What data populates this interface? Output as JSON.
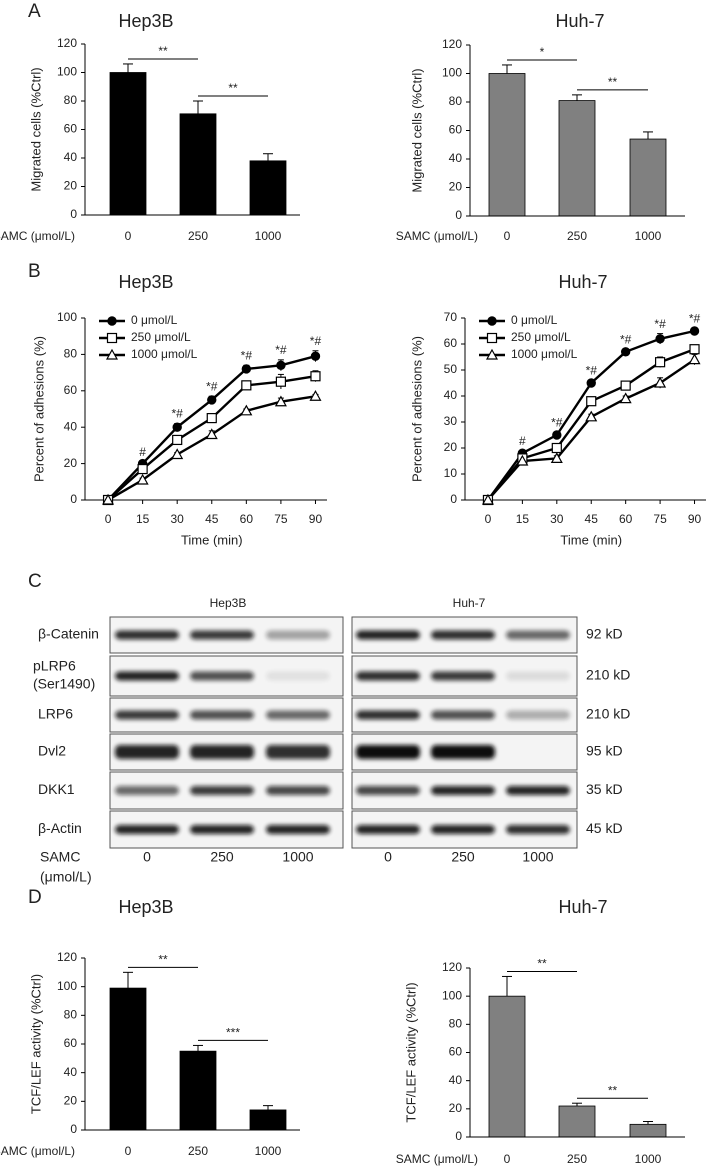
{
  "panels": [
    "A",
    "B",
    "C",
    "D"
  ],
  "chart_data": [
    {
      "type": "bar",
      "title": "Hep3B",
      "ylabel": "Migrated cells (%Ctrl)",
      "xlabel": "SAMC (μmol/L)",
      "categories": [
        "0",
        "250",
        "1000"
      ],
      "values": [
        100,
        71,
        38
      ],
      "errors": [
        6,
        9,
        5
      ],
      "color": "#000000",
      "ylim": [
        0,
        120
      ],
      "yticks": [
        0,
        20,
        40,
        60,
        80,
        100,
        120
      ],
      "annotations": [
        {
          "text": "**",
          "from": 0,
          "to": 1
        },
        {
          "text": "**",
          "from": 1,
          "to": 2
        }
      ]
    },
    {
      "type": "bar",
      "title": "Huh-7",
      "ylabel": "Migrated cells (%Ctrl)",
      "xlabel": "SAMC (μmol/L)",
      "categories": [
        "0",
        "250",
        "1000"
      ],
      "values": [
        100,
        81,
        54
      ],
      "errors": [
        6,
        4,
        5
      ],
      "color": "#808080",
      "ylim": [
        0,
        120
      ],
      "yticks": [
        0,
        20,
        40,
        60,
        80,
        100,
        120
      ],
      "annotations": [
        {
          "text": "*",
          "from": 0,
          "to": 1
        },
        {
          "text": "**",
          "from": 1,
          "to": 2
        }
      ]
    },
    {
      "type": "line",
      "title": "Hep3B",
      "ylabel": "Percent of adhesions (%)",
      "xlabel": "Time (min)",
      "x": [
        0,
        15,
        30,
        45,
        60,
        75,
        90
      ],
      "xlim": [
        -10,
        95
      ],
      "xticks": [
        0,
        15,
        30,
        45,
        60,
        75,
        90
      ],
      "ylim": [
        0,
        100
      ],
      "yticks": [
        0,
        20,
        40,
        60,
        80,
        100
      ],
      "legend": "upper-left",
      "series": [
        {
          "name": "0 μmol/L",
          "color": "#000000",
          "marker": "circle",
          "values": [
            0,
            20,
            40,
            55,
            72,
            74,
            79
          ],
          "errors": [
            0,
            1,
            2,
            2,
            2,
            3,
            3
          ]
        },
        {
          "name": "250 μmol/L",
          "color": "#000000",
          "marker": "square",
          "values": [
            0,
            17,
            33,
            45,
            63,
            65,
            68
          ],
          "errors": [
            0,
            1,
            2,
            2,
            2,
            4,
            3
          ]
        },
        {
          "name": "1000 μmol/L",
          "color": "#000000",
          "marker": "triangle",
          "values": [
            0,
            11,
            25,
            36,
            49,
            54,
            57
          ],
          "errors": [
            0,
            1,
            1,
            2,
            1,
            2,
            1
          ]
        }
      ],
      "point_labels": [
        null,
        "#",
        "*#",
        "*#",
        "*#",
        "*#",
        "*#"
      ]
    },
    {
      "type": "line",
      "title": "Huh-7",
      "ylabel": "Percent of adhesions (%)",
      "xlabel": "Time (min)",
      "x": [
        0,
        15,
        30,
        45,
        60,
        75,
        90
      ],
      "xlim": [
        -10,
        95
      ],
      "xticks": [
        0,
        15,
        30,
        45,
        60,
        75,
        90
      ],
      "ylim": [
        0,
        70
      ],
      "yticks": [
        0,
        10,
        20,
        30,
        40,
        50,
        60,
        70
      ],
      "legend": "upper-left",
      "series": [
        {
          "name": "0 μmol/L",
          "color": "#000000",
          "marker": "circle",
          "values": [
            0,
            18,
            25,
            45,
            57,
            62,
            65
          ],
          "errors": [
            0,
            1,
            1,
            1,
            1,
            2,
            1
          ]
        },
        {
          "name": "250 μmol/L",
          "color": "#000000",
          "marker": "square",
          "values": [
            0,
            16,
            20,
            38,
            44,
            53,
            58
          ],
          "errors": [
            0,
            1,
            1,
            1,
            1,
            2,
            1
          ]
        },
        {
          "name": "1000 μmol/L",
          "color": "#000000",
          "marker": "triangle",
          "values": [
            0,
            15,
            16,
            32,
            39,
            45,
            54
          ],
          "errors": [
            0,
            1,
            1,
            1,
            1,
            2,
            2
          ]
        }
      ],
      "point_labels": [
        null,
        "#",
        "*#",
        "*#",
        "*#",
        "*#",
        "*#"
      ]
    },
    {
      "type": "bar",
      "title": "Hep3B",
      "ylabel": "TCF/LEF activity (%Ctrl)",
      "xlabel": "SAMC (μmol/L)",
      "categories": [
        "0",
        "250",
        "1000"
      ],
      "values": [
        99,
        55,
        14
      ],
      "errors": [
        11,
        4,
        3
      ],
      "color": "#000000",
      "ylim": [
        0,
        120
      ],
      "yticks": [
        0,
        20,
        40,
        60,
        80,
        100,
        120
      ],
      "annotations": [
        {
          "text": "**",
          "from": 0,
          "to": 1
        },
        {
          "text": "***",
          "from": 1,
          "to": 2
        }
      ]
    },
    {
      "type": "bar",
      "title": "Huh-7",
      "ylabel": "TCF/LEF activity (%Ctrl)",
      "xlabel": "SAMC (μmol/L)",
      "categories": [
        "0",
        "250",
        "1000"
      ],
      "values": [
        100,
        22,
        9
      ],
      "errors": [
        14,
        2,
        2
      ],
      "color": "#808080",
      "ylim": [
        0,
        120
      ],
      "yticks": [
        0,
        20,
        40,
        60,
        80,
        100,
        120
      ],
      "annotations": [
        {
          "text": "**",
          "from": 0,
          "to": 1
        },
        {
          "text": "**",
          "from": 1,
          "to": 2
        }
      ]
    }
  ],
  "blot": {
    "columns": [
      "Hep3B",
      "Huh-7"
    ],
    "rows": [
      {
        "label": [
          "β-Catenin"
        ],
        "size": "92 kD"
      },
      {
        "label": [
          "pLRP6",
          "(Ser1490)"
        ],
        "size": "210 kD"
      },
      {
        "label": [
          "LRP6"
        ],
        "size": "210 kD"
      },
      {
        "label": [
          "Dvl2"
        ],
        "size": "95 kD"
      },
      {
        "label": [
          "DKK1"
        ],
        "size": "35 kD"
      },
      {
        "label": [
          "β-Actin"
        ],
        "size": "45 kD"
      }
    ],
    "dose_label": [
      "SAMC",
      "(μmol/L)"
    ],
    "lanes": [
      "0",
      "250",
      "1000"
    ]
  }
}
